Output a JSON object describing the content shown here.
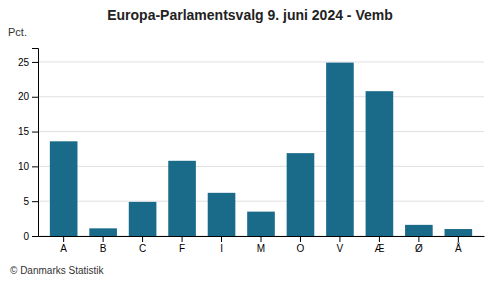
{
  "chart_data": {
    "type": "bar",
    "title": "Europa-Parlamentsvalg 9. juni 2024 - Vemb",
    "ylabel": "Pct.",
    "annotations": [
      "© Danmarks Statistik"
    ],
    "categories": [
      "A",
      "B",
      "C",
      "F",
      "I",
      "M",
      "O",
      "V",
      "Æ",
      "Ø",
      "Å"
    ],
    "values": [
      13.6,
      1.1,
      4.9,
      10.8,
      6.2,
      3.5,
      11.9,
      24.9,
      20.8,
      1.6,
      1.0
    ],
    "color": "#1a6b8a",
    "ylim": [
      0,
      27
    ],
    "yticks": [
      0,
      5,
      10,
      15,
      20,
      25
    ],
    "grid": true
  }
}
